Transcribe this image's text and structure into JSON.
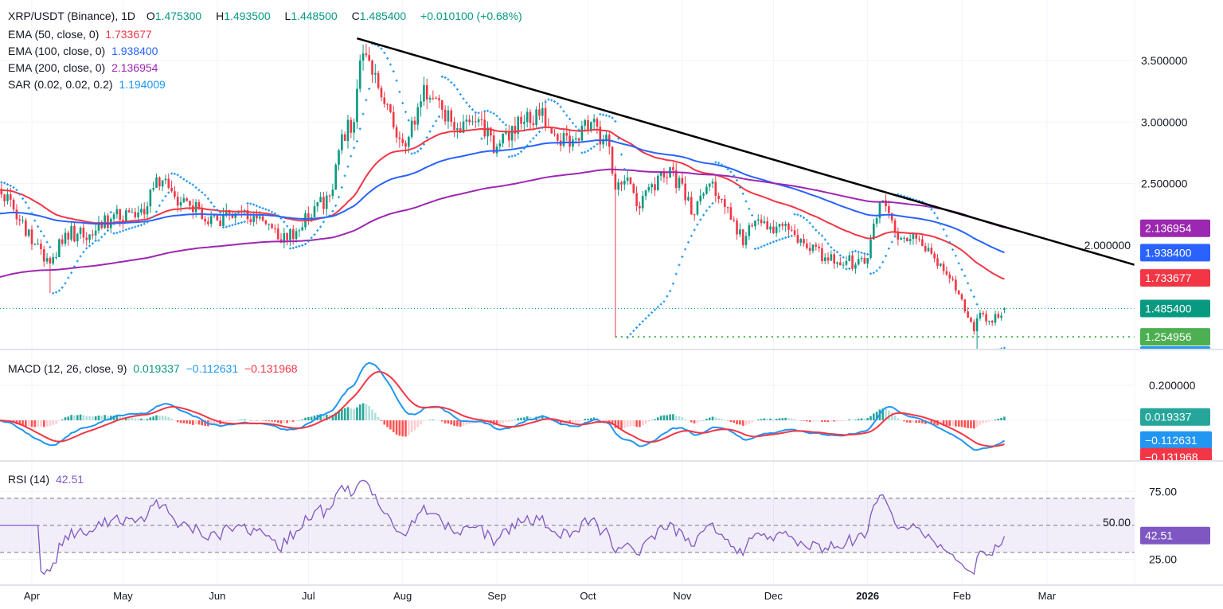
{
  "header": {
    "symbol": "XRP/USDT (Binance), 1D",
    "o_label": "O",
    "o": "1.475300",
    "h_label": "H",
    "h": "1.493500",
    "l_label": "L",
    "l": "1.448500",
    "c_label": "C",
    "c": "1.485400",
    "change": "+0.010100 (+0.68%)"
  },
  "indicators": [
    {
      "label": "EMA (50, close, 0)",
      "value": "1.733677",
      "color": "#f23645"
    },
    {
      "label": "EMA (100, close, 0)",
      "value": "1.938400",
      "color": "#2962ff"
    },
    {
      "label": "EMA (200, close, 0)",
      "value": "2.136954",
      "color": "#9c27b0"
    },
    {
      "label": "SAR (0.02, 0.02, 0.2)",
      "value": "1.194009",
      "color": "#2196f3"
    }
  ],
  "macd_legend": {
    "label": "MACD (12, 26, close, 9)",
    "hist": "0.019337",
    "macd": "−0.112631",
    "signal": "−0.131968"
  },
  "rsi_legend": {
    "label": "RSI (14)",
    "value": "42.51"
  },
  "colors": {
    "up": "#089981",
    "down": "#f23645",
    "ema50": "#f23645",
    "ema100": "#2962ff",
    "ema200": "#9c27b0",
    "sar": "#2196f3",
    "macd": "#2196f3",
    "signal": "#f23645",
    "rsi": "#7e57c2",
    "trendline": "#000000",
    "support": "#4caf50"
  },
  "chart_data": [
    {
      "type": "candlestick",
      "title": "XRP/USDT (Binance), 1D",
      "x_ticks": [
        "Apr",
        "May",
        "Jun",
        "Jul",
        "Aug",
        "Sep",
        "Oct",
        "Nov",
        "Dec",
        "2026",
        "Feb",
        "Mar"
      ],
      "y_ticks": [
        "3.500000",
        "3.000000",
        "2.500000",
        "2.000000"
      ],
      "ylim": [
        1.16,
        3.85
      ],
      "close_keypoints": [
        [
          "2025-03-21",
          2.45
        ],
        [
          "2025-03-28",
          2.2
        ],
        [
          "2025-04-07",
          1.85
        ],
        [
          "2025-04-12",
          2.1
        ],
        [
          "2025-04-21",
          2.08
        ],
        [
          "2025-04-28",
          2.25
        ],
        [
          "2025-05-08",
          2.25
        ],
        [
          "2025-05-12",
          2.55
        ],
        [
          "2025-05-20",
          2.35
        ],
        [
          "2025-06-01",
          2.2
        ],
        [
          "2025-06-08",
          2.28
        ],
        [
          "2025-06-16",
          2.2
        ],
        [
          "2025-06-22",
          2.02
        ],
        [
          "2025-07-01",
          2.22
        ],
        [
          "2025-07-08",
          2.4
        ],
        [
          "2025-07-12",
          2.9
        ],
        [
          "2025-07-16",
          3.0
        ],
        [
          "2025-07-18",
          3.5
        ],
        [
          "2025-07-21",
          3.5
        ],
        [
          "2025-07-25",
          3.2
        ],
        [
          "2025-08-02",
          2.8
        ],
        [
          "2025-08-08",
          3.3
        ],
        [
          "2025-08-14",
          3.1
        ],
        [
          "2025-08-19",
          2.95
        ],
        [
          "2025-08-25",
          3.0
        ],
        [
          "2025-09-01",
          2.8
        ],
        [
          "2025-09-10",
          3.0
        ],
        [
          "2025-09-15",
          3.05
        ],
        [
          "2025-09-25",
          2.8
        ],
        [
          "2025-10-02",
          3.0
        ],
        [
          "2025-10-08",
          2.8
        ],
        [
          "2025-10-10",
          2.45
        ],
        [
          "2025-10-14",
          2.55
        ],
        [
          "2025-10-18",
          2.3
        ],
        [
          "2025-10-25",
          2.6
        ],
        [
          "2025-11-01",
          2.5
        ],
        [
          "2025-11-04",
          2.25
        ],
        [
          "2025-11-10",
          2.5
        ],
        [
          "2025-11-18",
          2.2
        ],
        [
          "2025-11-21",
          2.0
        ],
        [
          "2025-11-25",
          2.2
        ],
        [
          "2025-12-02",
          2.15
        ],
        [
          "2025-12-10",
          2.05
        ],
        [
          "2025-12-18",
          1.9
        ],
        [
          "2025-12-25",
          1.87
        ],
        [
          "2025-12-31",
          1.85
        ],
        [
          "2026-01-05",
          2.35
        ],
        [
          "2026-01-10",
          2.1
        ],
        [
          "2026-01-15",
          2.05
        ],
        [
          "2026-01-20",
          1.95
        ],
        [
          "2026-01-25",
          1.85
        ],
        [
          "2026-01-31",
          1.6
        ],
        [
          "2026-02-05",
          1.3
        ],
        [
          "2026-02-07",
          1.45
        ],
        [
          "2026-02-11",
          1.37
        ],
        [
          "2026-02-15",
          1.4854
        ]
      ],
      "low_spikes": [
        [
          "2025-04-07",
          1.61
        ],
        [
          "2025-10-10",
          1.25
        ],
        [
          "2026-02-06",
          1.11
        ]
      ],
      "last_candle": {
        "open": 1.4753,
        "high": 1.4935,
        "low": 1.4485,
        "close": 1.4854
      },
      "ema_initial": {
        "ema50": 2.45,
        "ema100": 2.25,
        "ema200": 1.73
      },
      "trendline": [
        [
          "2025-07-17",
          3.68
        ],
        [
          "2026-04-03",
          1.81
        ]
      ],
      "support_line": {
        "from": "2025-10-10",
        "value": 1.254956
      },
      "price_tags": [
        {
          "value": "2.136954",
          "color": "#9c27b0"
        },
        {
          "value": "1.938400",
          "color": "#2962ff"
        },
        {
          "value": "1.733677",
          "color": "#f23645"
        },
        {
          "value": "1.485400",
          "color": "#089981"
        },
        {
          "value": "1.254956",
          "color": "#4caf50"
        },
        {
          "value": "1.194009",
          "color": "#2196f3"
        }
      ]
    },
    {
      "type": "macd",
      "y_ticks": [
        "0.200000"
      ],
      "tags": [
        {
          "value": "0.019337",
          "color": "#26a69a"
        },
        {
          "value": "−0.112631",
          "color": "#2196f3"
        },
        {
          "value": "−0.131968",
          "color": "#f23645"
        }
      ]
    },
    {
      "type": "rsi",
      "y_ticks": [
        "75.00",
        "50.00",
        "25.00"
      ],
      "bands": [
        30,
        50,
        70
      ],
      "tag": {
        "value": "42.51",
        "color": "#7e57c2"
      }
    }
  ]
}
